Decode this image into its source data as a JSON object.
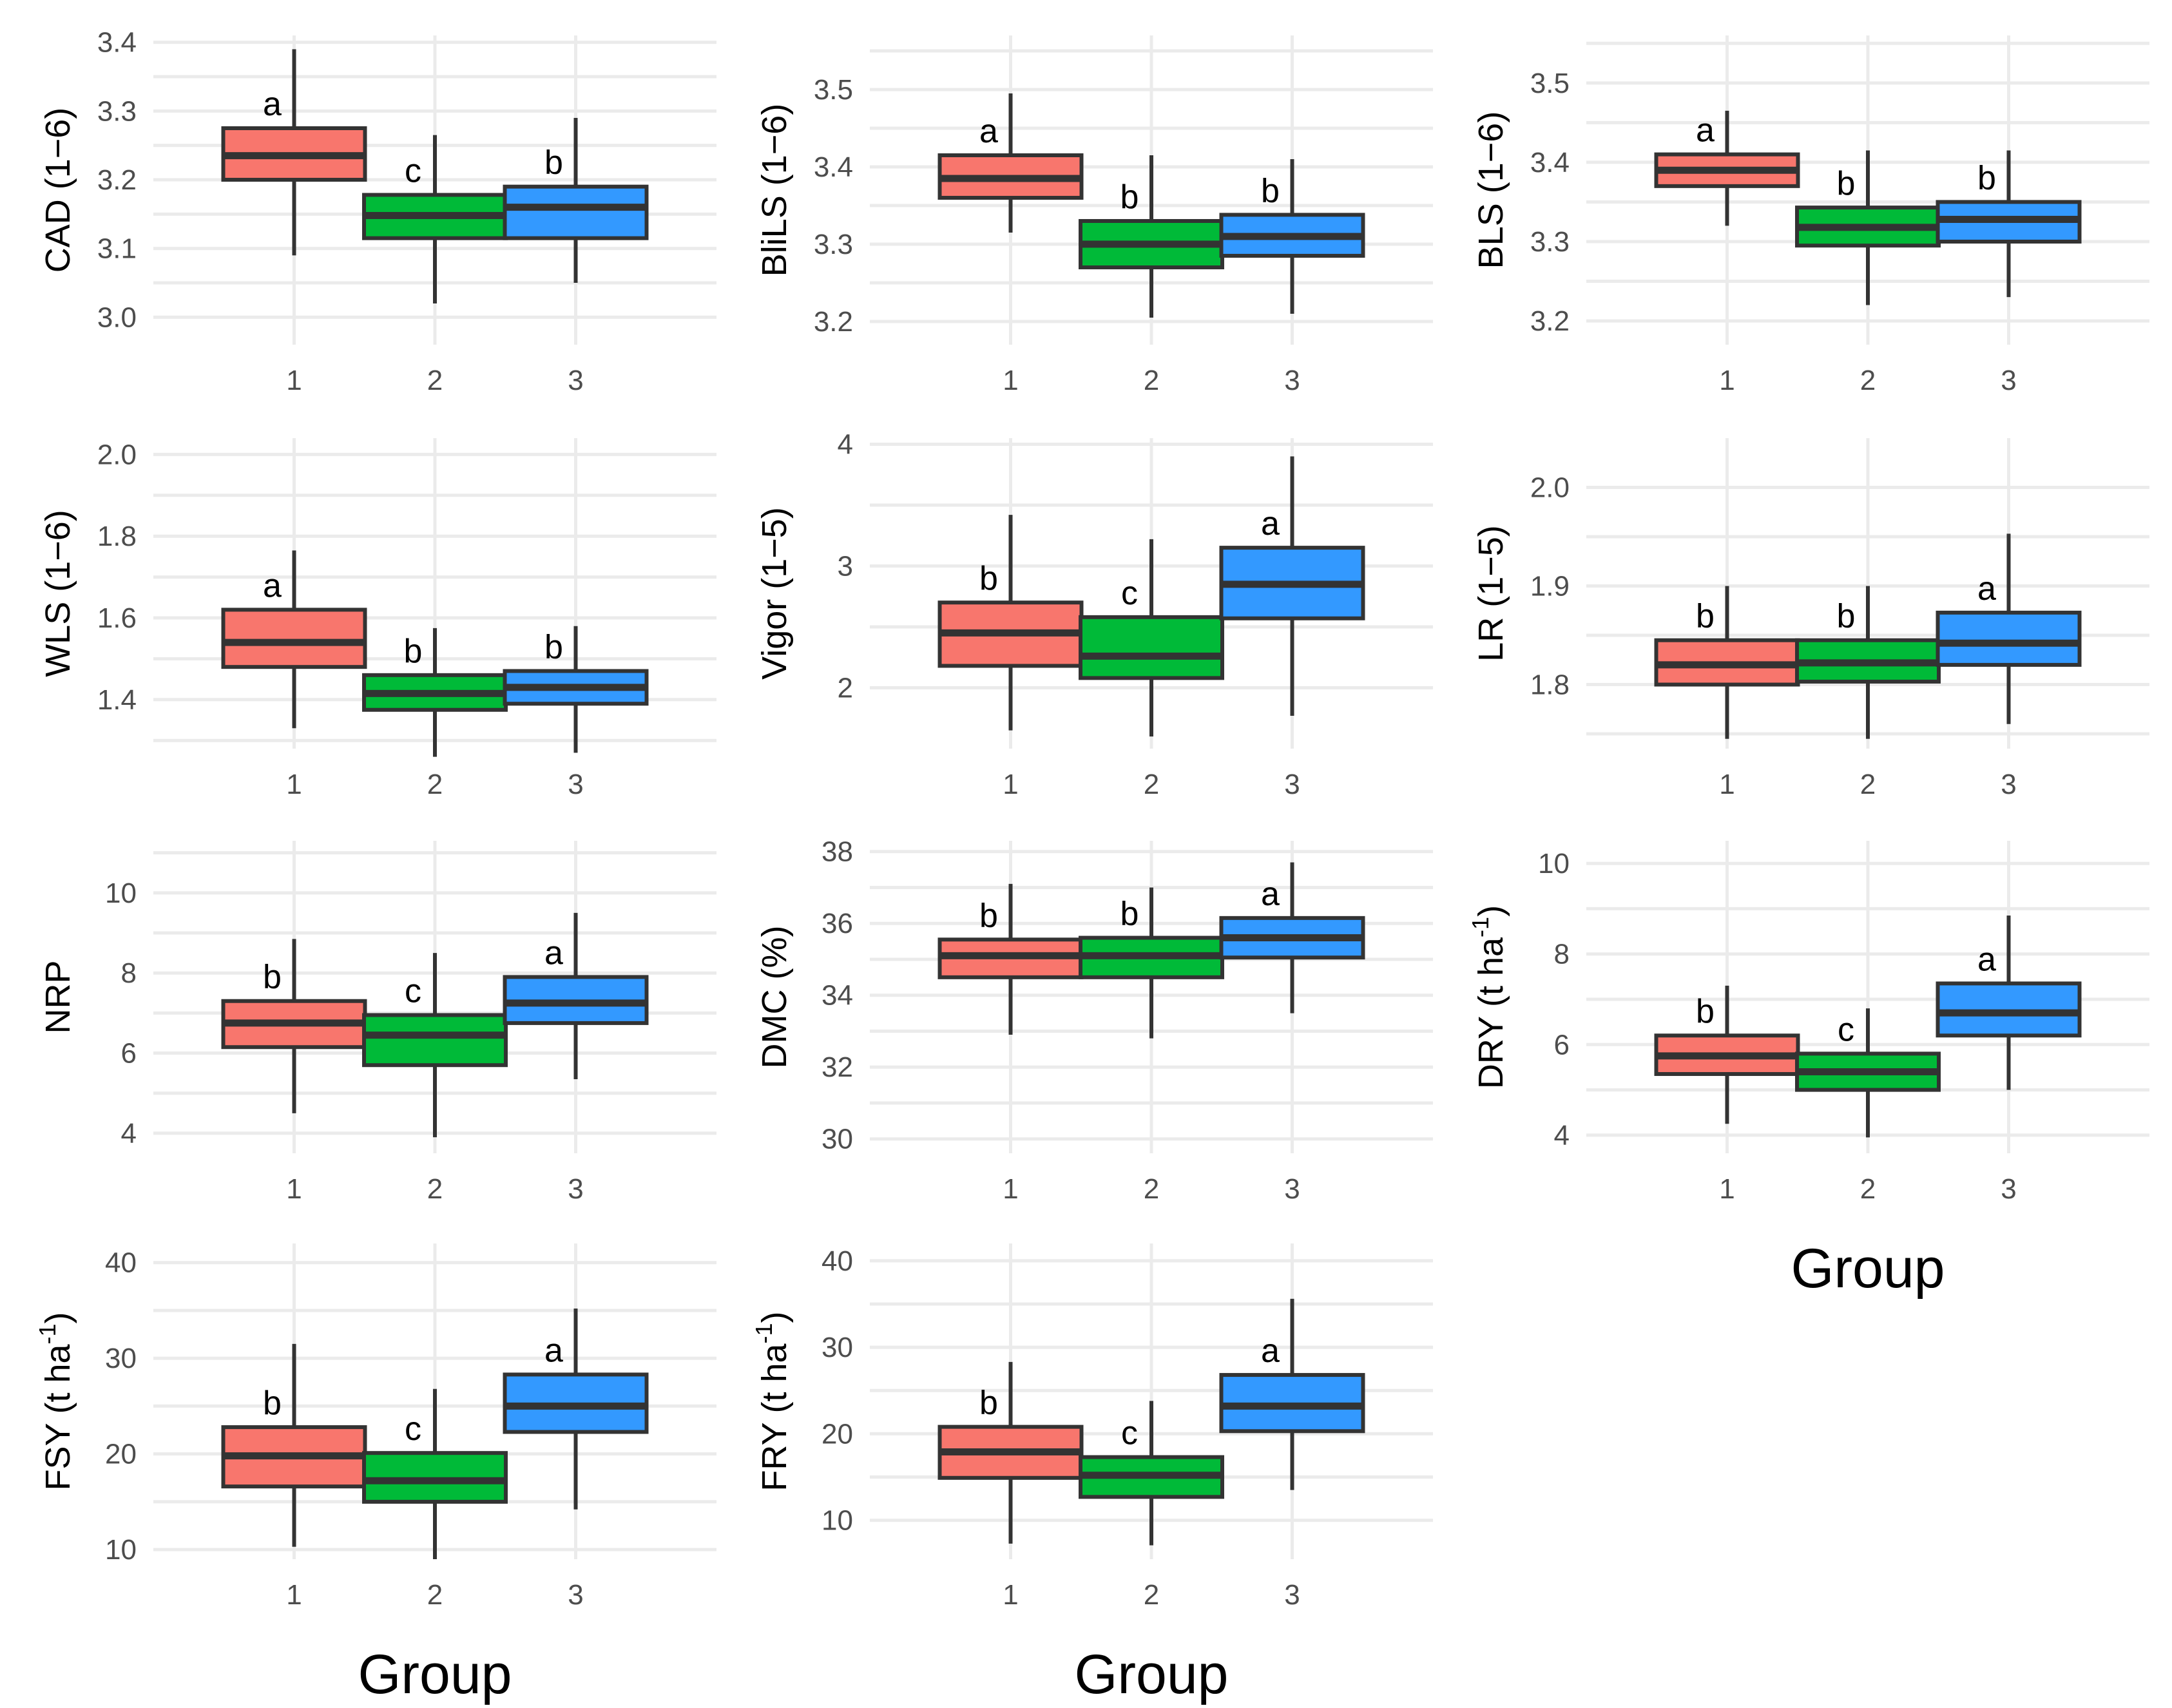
{
  "figure": {
    "x_title": "Group"
  },
  "colors": {
    "1": "#F8766D",
    "2": "#00BA38",
    "3": "#3399FF",
    "outline": "#333333",
    "grid": "#EBEBEB"
  },
  "chart_data": [
    {
      "type": "boxplot",
      "ylabel": "CAD (1−6)",
      "sup": "",
      "ylabel_suffix": "",
      "xlabel": "",
      "ylim": [
        2.96,
        3.41
      ],
      "yticks": [
        3.0,
        3.1,
        3.2,
        3.3,
        3.4
      ],
      "ytick_labels": [
        "3.0",
        "3.1",
        "3.2",
        "3.3",
        "3.4"
      ],
      "categories": [
        "1",
        "2",
        "3"
      ],
      "boxes": [
        {
          "group": "1",
          "min": 3.09,
          "q1": 3.2,
          "median": 3.235,
          "q3": 3.275,
          "max": 3.39,
          "letter": "a"
        },
        {
          "group": "2",
          "min": 3.02,
          "q1": 3.115,
          "median": 3.148,
          "q3": 3.178,
          "max": 3.265,
          "letter": "c"
        },
        {
          "group": "3",
          "min": 3.05,
          "q1": 3.115,
          "median": 3.16,
          "q3": 3.19,
          "max": 3.29,
          "letter": "b"
        }
      ]
    },
    {
      "type": "boxplot",
      "ylabel": "BliLS (1−6)",
      "sup": "",
      "ylabel_suffix": "",
      "xlabel": "",
      "ylim": [
        3.17,
        3.57
      ],
      "yticks": [
        3.2,
        3.3,
        3.4,
        3.5
      ],
      "ytick_labels": [
        "3.2",
        "3.3",
        "3.4",
        "3.5"
      ],
      "categories": [
        "1",
        "2",
        "3"
      ],
      "boxes": [
        {
          "group": "1",
          "min": 3.315,
          "q1": 3.36,
          "median": 3.385,
          "q3": 3.415,
          "max": 3.495,
          "letter": "a"
        },
        {
          "group": "2",
          "min": 3.205,
          "q1": 3.27,
          "median": 3.3,
          "q3": 3.33,
          "max": 3.415,
          "letter": "b"
        },
        {
          "group": "3",
          "min": 3.21,
          "q1": 3.285,
          "median": 3.31,
          "q3": 3.338,
          "max": 3.41,
          "letter": "b"
        }
      ]
    },
    {
      "type": "boxplot",
      "ylabel": "BLS (1−6)",
      "sup": "",
      "ylabel_suffix": "",
      "xlabel": "",
      "ylim": [
        3.17,
        3.56
      ],
      "yticks": [
        3.2,
        3.3,
        3.4,
        3.5
      ],
      "ytick_labels": [
        "3.2",
        "3.3",
        "3.4",
        "3.5"
      ],
      "categories": [
        "1",
        "2",
        "3"
      ],
      "boxes": [
        {
          "group": "1",
          "min": 3.32,
          "q1": 3.37,
          "median": 3.39,
          "q3": 3.41,
          "max": 3.465,
          "letter": "a"
        },
        {
          "group": "2",
          "min": 3.22,
          "q1": 3.295,
          "median": 3.318,
          "q3": 3.343,
          "max": 3.415,
          "letter": "b"
        },
        {
          "group": "3",
          "min": 3.23,
          "q1": 3.3,
          "median": 3.328,
          "q3": 3.35,
          "max": 3.415,
          "letter": "b"
        }
      ]
    },
    {
      "type": "boxplot",
      "ylabel": "WLS (1−6)",
      "sup": "",
      "ylabel_suffix": "",
      "xlabel": "",
      "ylim": [
        1.28,
        2.04
      ],
      "yticks": [
        1.4,
        1.6,
        1.8,
        2.0
      ],
      "ytick_labels": [
        "1.4",
        "1.6",
        "1.8",
        "2.0"
      ],
      "categories": [
        "1",
        "2",
        "3"
      ],
      "boxes": [
        {
          "group": "1",
          "min": 1.33,
          "q1": 1.48,
          "median": 1.54,
          "q3": 1.62,
          "max": 1.765,
          "letter": "a"
        },
        {
          "group": "2",
          "min": 1.26,
          "q1": 1.375,
          "median": 1.415,
          "q3": 1.46,
          "max": 1.575,
          "letter": "b"
        },
        {
          "group": "3",
          "min": 1.27,
          "q1": 1.39,
          "median": 1.43,
          "q3": 1.47,
          "max": 1.58,
          "letter": "b"
        }
      ]
    },
    {
      "type": "boxplot",
      "ylabel": "Vigor (1−5)",
      "sup": "",
      "ylabel_suffix": "",
      "xlabel": "",
      "ylim": [
        1.5,
        4.05
      ],
      "yticks": [
        2,
        3,
        4
      ],
      "ytick_labels": [
        "2",
        "3",
        "4"
      ],
      "categories": [
        "1",
        "2",
        "3"
      ],
      "boxes": [
        {
          "group": "1",
          "min": 1.65,
          "q1": 2.18,
          "median": 2.45,
          "q3": 2.7,
          "max": 3.42,
          "letter": "b"
        },
        {
          "group": "2",
          "min": 1.6,
          "q1": 2.08,
          "median": 2.26,
          "q3": 2.58,
          "max": 3.22,
          "letter": "c"
        },
        {
          "group": "3",
          "min": 1.77,
          "q1": 2.57,
          "median": 2.85,
          "q3": 3.15,
          "max": 3.9,
          "letter": "a"
        }
      ]
    },
    {
      "type": "boxplot",
      "ylabel": "LR (1−5)",
      "sup": "",
      "ylabel_suffix": "",
      "xlabel": "",
      "ylim": [
        1.735,
        2.05
      ],
      "yticks": [
        1.8,
        1.9,
        2.0
      ],
      "ytick_labels": [
        "1.8",
        "1.9",
        "2.0"
      ],
      "categories": [
        "1",
        "2",
        "3"
      ],
      "boxes": [
        {
          "group": "1",
          "min": 1.745,
          "q1": 1.8,
          "median": 1.82,
          "q3": 1.845,
          "max": 1.9,
          "letter": "b"
        },
        {
          "group": "2",
          "min": 1.745,
          "q1": 1.803,
          "median": 1.822,
          "q3": 1.845,
          "max": 1.9,
          "letter": "b"
        },
        {
          "group": "3",
          "min": 1.76,
          "q1": 1.82,
          "median": 1.842,
          "q3": 1.873,
          "max": 1.953,
          "letter": "a"
        }
      ]
    },
    {
      "type": "boxplot",
      "ylabel": "NRP",
      "sup": "",
      "ylabel_suffix": "",
      "xlabel": "",
      "ylim": [
        3.5,
        11.3
      ],
      "yticks": [
        4,
        6,
        8,
        10
      ],
      "ytick_labels": [
        "4",
        "6",
        "8",
        "10"
      ],
      "categories": [
        "1",
        "2",
        "3"
      ],
      "boxes": [
        {
          "group": "1",
          "min": 4.5,
          "q1": 6.15,
          "median": 6.75,
          "q3": 7.3,
          "max": 8.85,
          "letter": "b"
        },
        {
          "group": "2",
          "min": 3.9,
          "q1": 5.7,
          "median": 6.45,
          "q3": 6.95,
          "max": 8.5,
          "letter": "c"
        },
        {
          "group": "3",
          "min": 5.35,
          "q1": 6.75,
          "median": 7.25,
          "q3": 7.9,
          "max": 9.5,
          "letter": "a"
        }
      ]
    },
    {
      "type": "boxplot",
      "ylabel": "DMC (%)",
      "sup": "",
      "ylabel_suffix": "",
      "xlabel": "",
      "ylim": [
        29.6,
        38.3
      ],
      "yticks": [
        30,
        32,
        34,
        36,
        38
      ],
      "ytick_labels": [
        "30",
        "32",
        "34",
        "36",
        "38"
      ],
      "categories": [
        "1",
        "2",
        "3"
      ],
      "boxes": [
        {
          "group": "1",
          "min": 32.9,
          "q1": 34.5,
          "median": 35.1,
          "q3": 35.55,
          "max": 37.1,
          "letter": "b"
        },
        {
          "group": "2",
          "min": 32.8,
          "q1": 34.5,
          "median": 35.1,
          "q3": 35.6,
          "max": 37.0,
          "letter": "b"
        },
        {
          "group": "3",
          "min": 33.5,
          "q1": 35.05,
          "median": 35.6,
          "q3": 36.15,
          "max": 37.7,
          "letter": "a"
        }
      ]
    },
    {
      "type": "boxplot",
      "ylabel": "DRY (t ha",
      "sup": "-1",
      "ylabel_suffix": ")",
      "xlabel": "Group",
      "ylim": [
        3.6,
        10.5
      ],
      "yticks": [
        4,
        6,
        8,
        10
      ],
      "ytick_labels": [
        "4",
        "6",
        "8",
        "10"
      ],
      "categories": [
        "1",
        "2",
        "3"
      ],
      "boxes": [
        {
          "group": "1",
          "min": 4.25,
          "q1": 5.35,
          "median": 5.75,
          "q3": 6.2,
          "max": 7.3,
          "letter": "b"
        },
        {
          "group": "2",
          "min": 3.95,
          "q1": 5.0,
          "median": 5.4,
          "q3": 5.8,
          "max": 6.8,
          "letter": "c"
        },
        {
          "group": "3",
          "min": 5.0,
          "q1": 6.2,
          "median": 6.7,
          "q3": 7.35,
          "max": 8.85,
          "letter": "a"
        }
      ]
    },
    {
      "type": "boxplot",
      "ylabel": "FSY (t ha",
      "sup": "-1",
      "ylabel_suffix": ")",
      "xlabel": "Group",
      "ylim": [
        9.0,
        42.0
      ],
      "yticks": [
        10,
        20,
        30,
        40
      ],
      "ytick_labels": [
        "10",
        "20",
        "30",
        "40"
      ],
      "categories": [
        "1",
        "2",
        "3"
      ],
      "boxes": [
        {
          "group": "1",
          "min": 10.3,
          "q1": 16.6,
          "median": 19.8,
          "q3": 22.8,
          "max": 31.5,
          "letter": "b"
        },
        {
          "group": "2",
          "min": 9.0,
          "q1": 15.0,
          "median": 17.2,
          "q3": 20.1,
          "max": 26.8,
          "letter": "c"
        },
        {
          "group": "3",
          "min": 14.2,
          "q1": 22.3,
          "median": 25.0,
          "q3": 28.3,
          "max": 35.2,
          "letter": "a"
        }
      ]
    },
    {
      "type": "boxplot",
      "ylabel": "FRY (t ha",
      "sup": "-1",
      "ylabel_suffix": ")",
      "xlabel": "Group",
      "ylim": [
        5.5,
        42.0
      ],
      "yticks": [
        10,
        20,
        30,
        40
      ],
      "ytick_labels": [
        "10",
        "20",
        "30",
        "40"
      ],
      "categories": [
        "1",
        "2",
        "3"
      ],
      "boxes": [
        {
          "group": "1",
          "min": 7.3,
          "q1": 14.9,
          "median": 17.9,
          "q3": 20.8,
          "max": 28.3,
          "letter": "b"
        },
        {
          "group": "2",
          "min": 7.1,
          "q1": 12.7,
          "median": 15.2,
          "q3": 17.3,
          "max": 23.8,
          "letter": "c"
        },
        {
          "group": "3",
          "min": 13.5,
          "q1": 20.3,
          "median": 23.2,
          "q3": 26.8,
          "max": 35.6,
          "letter": "a"
        }
      ]
    }
  ]
}
